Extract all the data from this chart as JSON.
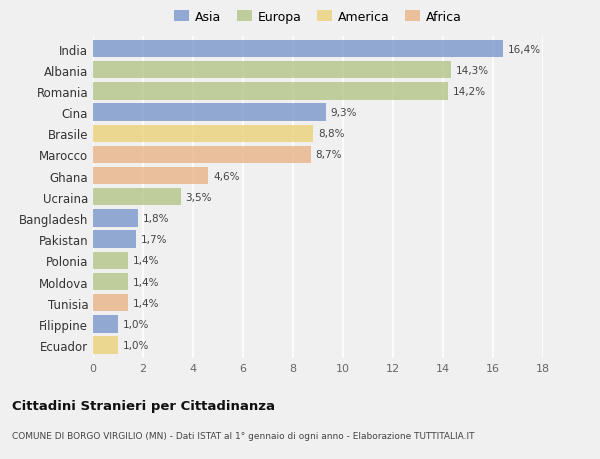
{
  "countries": [
    "India",
    "Albania",
    "Romania",
    "Cina",
    "Brasile",
    "Marocco",
    "Ghana",
    "Ucraina",
    "Bangladesh",
    "Pakistan",
    "Polonia",
    "Moldova",
    "Tunisia",
    "Filippine",
    "Ecuador"
  ],
  "values": [
    16.4,
    14.3,
    14.2,
    9.3,
    8.8,
    8.7,
    4.6,
    3.5,
    1.8,
    1.7,
    1.4,
    1.4,
    1.4,
    1.0,
    1.0
  ],
  "labels": [
    "16,4%",
    "14,3%",
    "14,2%",
    "9,3%",
    "8,8%",
    "8,7%",
    "4,6%",
    "3,5%",
    "1,8%",
    "1,7%",
    "1,4%",
    "1,4%",
    "1,4%",
    "1,0%",
    "1,0%"
  ],
  "continents": [
    "Asia",
    "Europa",
    "Europa",
    "Asia",
    "America",
    "Africa",
    "Africa",
    "Europa",
    "Asia",
    "Asia",
    "Europa",
    "Europa",
    "Africa",
    "Asia",
    "America"
  ],
  "colors": {
    "Asia": "#7090c8",
    "Europa": "#afc080",
    "America": "#eacf70",
    "Africa": "#e8b080"
  },
  "title": "Cittadini Stranieri per Cittadinanza",
  "subtitle": "COMUNE DI BORGO VIRGILIO (MN) - Dati ISTAT al 1° gennaio di ogni anno - Elaborazione TUTTITALIA.IT",
  "xlim": [
    0,
    18
  ],
  "xticks": [
    0,
    2,
    4,
    6,
    8,
    10,
    12,
    14,
    16,
    18
  ],
  "background_color": "#f0f0f0",
  "grid_color": "#ffffff",
  "bar_alpha": 0.75,
  "bar_height": 0.82
}
